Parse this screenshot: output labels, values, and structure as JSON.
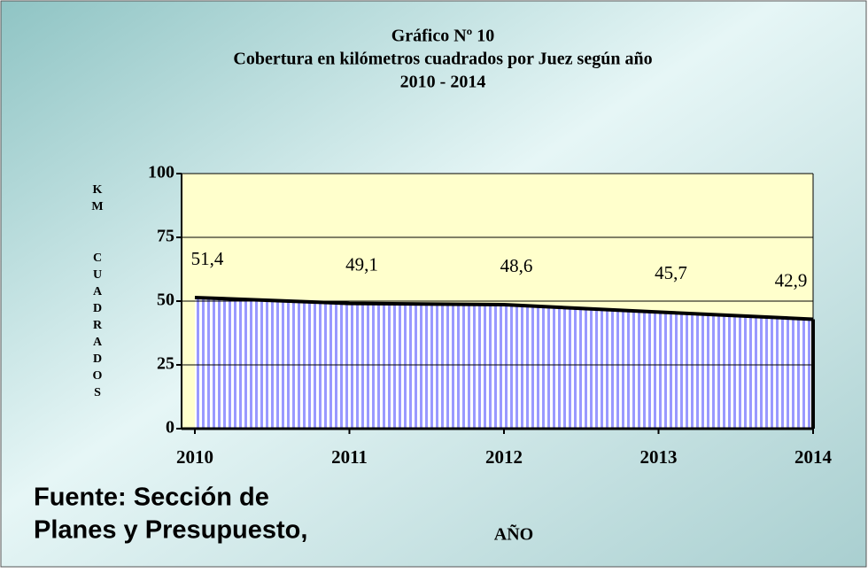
{
  "chart_data": {
    "type": "area",
    "title": [
      "Gráfico Nº 10",
      "Cobertura en kilómetros cuadrados por Juez según año",
      "2010 - 2014"
    ],
    "y_label": "KM CUADRADOS",
    "x_label": "AÑO",
    "source": [
      "Fuente: Sección de",
      "Planes y Presupuesto,"
    ],
    "categories": [
      "2010",
      "2011",
      "2012",
      "2013",
      "2014"
    ],
    "values": [
      51.4,
      49.1,
      48.6,
      45.7,
      42.9
    ],
    "value_labels": [
      "51,4",
      "49,1",
      "48,6",
      "45,7",
      "42,9"
    ],
    "color": "#9999ff",
    "ylim": [
      0,
      100
    ],
    "yticks": [
      0,
      25,
      50,
      75,
      100
    ],
    "grid": true
  }
}
